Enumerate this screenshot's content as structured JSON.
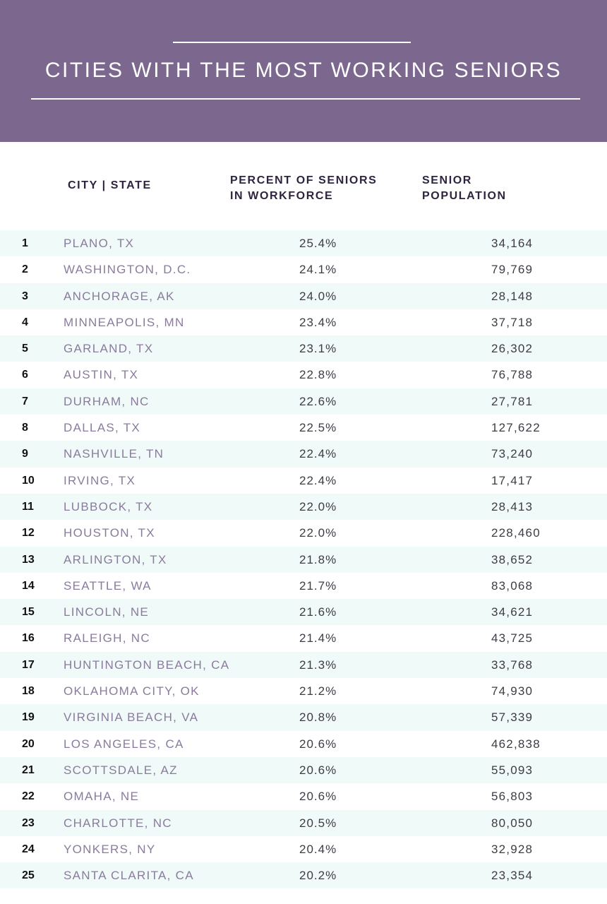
{
  "header": {
    "title": "CITIES WITH THE MOST WORKING SENIORS"
  },
  "columns": {
    "city": "CITY | STATE",
    "percent_line1": "PERCENT OF SENIORS",
    "percent_line2": "IN WORKFORCE",
    "population_line1": "SENIOR",
    "population_line2": "POPULATION"
  },
  "colors": {
    "header_bg": "#7c688f",
    "row_alt": "#f0faf9",
    "city_text": "#8a7b9d"
  },
  "chart_data": {
    "type": "table",
    "title": "CITIES WITH THE MOST WORKING SENIORS",
    "columns": [
      "",
      "CITY | STATE",
      "PERCENT OF SENIORS IN WORKFORCE",
      "SENIOR POPULATION"
    ],
    "rows": [
      {
        "rank": "1",
        "city": "PLANO, TX",
        "percent": "25.4%",
        "population": "34,164"
      },
      {
        "rank": "2",
        "city": "WASHINGTON, D.C.",
        "percent": "24.1%",
        "population": "79,769"
      },
      {
        "rank": "3",
        "city": "ANCHORAGE, AK",
        "percent": "24.0%",
        "population": "28,148"
      },
      {
        "rank": "4",
        "city": "MINNEAPOLIS, MN",
        "percent": "23.4%",
        "population": "37,718"
      },
      {
        "rank": "5",
        "city": "GARLAND, TX",
        "percent": "23.1%",
        "population": "26,302"
      },
      {
        "rank": "6",
        "city": "AUSTIN, TX",
        "percent": "22.8%",
        "population": "76,788"
      },
      {
        "rank": "7",
        "city": "DURHAM, NC",
        "percent": "22.6%",
        "population": "27,781"
      },
      {
        "rank": "8",
        "city": "DALLAS, TX",
        "percent": "22.5%",
        "population": "127,622"
      },
      {
        "rank": "9",
        "city": "NASHVILLE, TN",
        "percent": "22.4%",
        "population": "73,240"
      },
      {
        "rank": "10",
        "city": "IRVING, TX",
        "percent": "22.4%",
        "population": "17,417"
      },
      {
        "rank": "11",
        "city": "LUBBOCK, TX",
        "percent": "22.0%",
        "population": "28,413"
      },
      {
        "rank": "12",
        "city": "HOUSTON, TX",
        "percent": "22.0%",
        "population": "228,460"
      },
      {
        "rank": "13",
        "city": "ARLINGTON, TX",
        "percent": "21.8%",
        "population": "38,652"
      },
      {
        "rank": "14",
        "city": "SEATTLE, WA",
        "percent": "21.7%",
        "population": "83,068"
      },
      {
        "rank": "15",
        "city": "LINCOLN, NE",
        "percent": "21.6%",
        "population": "34,621"
      },
      {
        "rank": "16",
        "city": "RALEIGH, NC",
        "percent": "21.4%",
        "population": "43,725"
      },
      {
        "rank": "17",
        "city": "HUNTINGTON BEACH, CA",
        "percent": "21.3%",
        "population": "33,768"
      },
      {
        "rank": "18",
        "city": "OKLAHOMA CITY, OK",
        "percent": "21.2%",
        "population": "74,930"
      },
      {
        "rank": "19",
        "city": "VIRGINIA BEACH, VA",
        "percent": "20.8%",
        "population": "57,339"
      },
      {
        "rank": "20",
        "city": "LOS ANGELES, CA",
        "percent": "20.6%",
        "population": "462,838"
      },
      {
        "rank": "21",
        "city": "SCOTTSDALE, AZ",
        "percent": "20.6%",
        "population": "55,093"
      },
      {
        "rank": "22",
        "city": "OMAHA, NE",
        "percent": "20.6%",
        "population": "56,803"
      },
      {
        "rank": "23",
        "city": "CHARLOTTE, NC",
        "percent": "20.5%",
        "population": "80,050"
      },
      {
        "rank": "24",
        "city": "YONKERS, NY",
        "percent": "20.4%",
        "population": "32,928"
      },
      {
        "rank": "25",
        "city": "SANTA CLARITA, CA",
        "percent": "20.2%",
        "population": "23,354"
      }
    ]
  }
}
